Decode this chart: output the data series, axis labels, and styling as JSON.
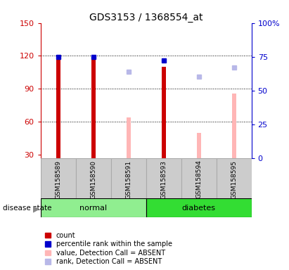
{
  "title": "GDS3153 / 1368554_at",
  "samples": [
    "GSM158589",
    "GSM158590",
    "GSM158591",
    "GSM158593",
    "GSM158594",
    "GSM158595"
  ],
  "ylim_left": [
    27,
    150
  ],
  "ylim_right": [
    0,
    100
  ],
  "yticks_left": [
    30,
    60,
    90,
    120,
    150
  ],
  "yticks_right": [
    0,
    25,
    50,
    75,
    100
  ],
  "yticklabels_right": [
    "0",
    "25",
    "50",
    "75",
    "100%"
  ],
  "bar_data": [
    {
      "sample": "GSM158589",
      "count_val": 120,
      "percentile_val": 75,
      "absent_value": null,
      "absent_rank": null,
      "is_absent": false
    },
    {
      "sample": "GSM158590",
      "count_val": 118,
      "percentile_val": 75,
      "absent_value": null,
      "absent_rank": null,
      "is_absent": false
    },
    {
      "sample": "GSM158591",
      "count_val": null,
      "percentile_val": null,
      "absent_value": 64,
      "absent_rank": 64,
      "is_absent": true
    },
    {
      "sample": "GSM158593",
      "count_val": 110,
      "percentile_val": 72,
      "absent_value": null,
      "absent_rank": null,
      "is_absent": false
    },
    {
      "sample": "GSM158594",
      "count_val": null,
      "percentile_val": null,
      "absent_value": 50,
      "absent_rank": 60,
      "is_absent": true
    },
    {
      "sample": "GSM158595",
      "count_val": null,
      "percentile_val": null,
      "absent_value": 86,
      "absent_rank": 67,
      "is_absent": true
    }
  ],
  "group_starts": [
    0,
    3
  ],
  "group_ends": [
    2,
    5
  ],
  "group_labels": [
    "normal",
    "diabetes"
  ],
  "group_colors": [
    "#90EE90",
    "#33dd33"
  ],
  "colors": {
    "count": "#cc0000",
    "percentile": "#0000cc",
    "absent_value": "#ffb6b6",
    "absent_rank": "#b8b8e8",
    "axis_left_color": "#cc0000",
    "axis_right_color": "#0000cc",
    "sample_box_bg": "#cccccc",
    "sample_box_border": "#aaaaaa"
  },
  "legend_items": [
    {
      "label": "count",
      "color": "#cc0000"
    },
    {
      "label": "percentile rank within the sample",
      "color": "#0000cc"
    },
    {
      "label": "value, Detection Call = ABSENT",
      "color": "#ffb6b6"
    },
    {
      "label": "rank, Detection Call = ABSENT",
      "color": "#b8b8e8"
    }
  ]
}
